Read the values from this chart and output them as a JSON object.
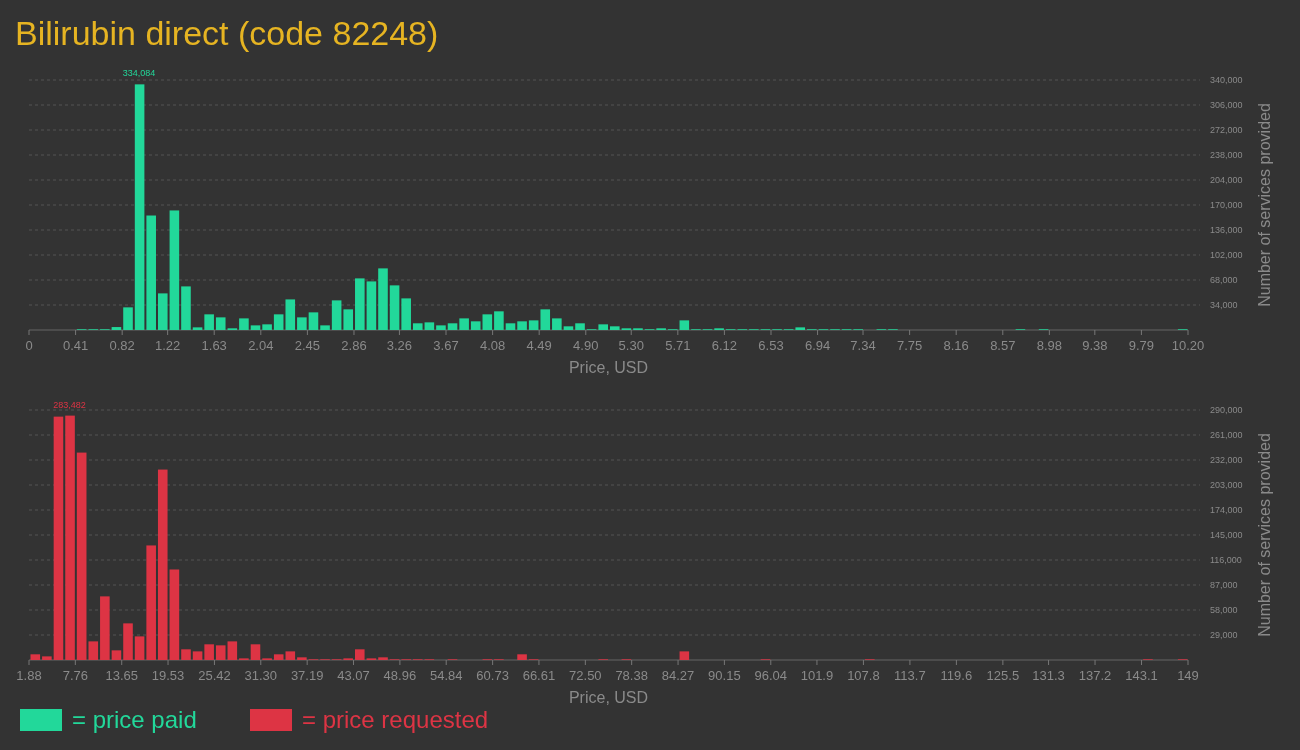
{
  "chart_data": [
    {
      "type": "histogram",
      "title": "Bilirubin direct (code 82248)",
      "xlabel": "Price, USD",
      "ylabel": "Number of services provided",
      "grid": "y",
      "legend": "bottom left",
      "bins": [
        0,
        0.102,
        0.204,
        0.306,
        0.408,
        0.51,
        0.612,
        0.714,
        0.816,
        0.918,
        1.02,
        1.122,
        1.224,
        1.326,
        1.428,
        1.53,
        1.632,
        1.734,
        1.836,
        1.938,
        2.04,
        2.142,
        2.244,
        2.346,
        2.448,
        2.55,
        2.652,
        2.754,
        2.856,
        2.958,
        3.06,
        3.162,
        3.264,
        3.366,
        3.468,
        3.57,
        3.672,
        3.774,
        3.876,
        3.978,
        4.08,
        4.182,
        4.284,
        4.386,
        4.488,
        4.59,
        4.692,
        4.794,
        4.896,
        4.998,
        5.1,
        5.202,
        5.304,
        5.406,
        5.508,
        5.61,
        5.712,
        5.814,
        5.916,
        6.018,
        6.12,
        6.222,
        6.324,
        6.426,
        6.528,
        6.63,
        6.732,
        6.834,
        6.936,
        7.038,
        7.14,
        7.242,
        7.344,
        7.446,
        7.548,
        7.65,
        7.752,
        7.854,
        7.956,
        8.058,
        8.16,
        8.262,
        8.364,
        8.466,
        8.568,
        8.67,
        8.772,
        8.874,
        8.976,
        9.078,
        9.18,
        9.282,
        9.384,
        9.486,
        9.588,
        9.69,
        9.792,
        9.894,
        9.996,
        10.098,
        10.2
      ],
      "series": [
        {
          "name": "= price paid",
          "color": "#22d89a",
          "values": [
            0,
            0,
            0,
            0,
            1000,
            1000,
            1000,
            4000,
            30800,
            334084,
            155700,
            49800,
            162600,
            59300,
            3600,
            21300,
            17200,
            2300,
            15800,
            6300,
            7700,
            21300,
            41600,
            17200,
            24000,
            6300,
            40300,
            28100,
            70200,
            66100,
            83800,
            60700,
            43000,
            9100,
            10400,
            6300,
            9100,
            15800,
            11800,
            21300,
            25400,
            9100,
            11800,
            13100,
            28100,
            15800,
            5000,
            9100,
            1000,
            7700,
            5000,
            2300,
            2300,
            1000,
            2300,
            1000,
            13100,
            1000,
            1000,
            2300,
            1000,
            1000,
            1000,
            1000,
            1000,
            1000,
            3600,
            1000,
            1000,
            1000,
            1000,
            1000,
            0,
            1000,
            1000,
            0,
            0,
            0,
            0,
            0,
            0,
            0,
            0,
            0,
            0,
            1000,
            0,
            1000,
            0,
            0,
            0,
            0,
            0,
            0,
            0,
            0,
            0,
            0,
            0,
            1000
          ],
          "value_labels": [
            null,
            null,
            null,
            null,
            null,
            null,
            null,
            null,
            null,
            "334,084",
            null,
            null,
            null,
            null,
            null,
            null,
            null,
            null,
            null,
            null,
            null,
            null,
            null,
            null,
            null,
            null,
            null,
            null,
            null,
            null,
            null,
            null,
            null,
            null,
            null,
            null,
            null,
            null,
            null,
            null,
            null,
            null,
            null,
            null,
            null,
            null,
            null,
            null,
            null,
            null,
            null,
            null,
            null,
            null,
            null,
            null,
            null,
            null,
            null,
            null,
            null,
            null,
            null,
            null,
            null,
            null,
            null,
            null,
            null,
            null,
            null,
            null,
            null,
            null,
            null,
            null,
            null,
            null,
            null,
            null,
            null,
            null,
            null,
            null,
            null,
            null,
            null,
            null,
            null,
            null,
            null,
            null,
            null,
            null,
            null,
            null,
            null,
            null,
            null,
            null
          ]
        }
      ],
      "xlim": [
        0,
        10.2
      ],
      "xticks": [
        0,
        0.41,
        0.82,
        1.22,
        1.63,
        2.04,
        2.45,
        2.86,
        3.26,
        3.67,
        4.08,
        4.49,
        {
          "value": 4.9,
          "label": "4.90"
        },
        {
          "value": 5.3,
          "label": "5.30"
        },
        5.71,
        6.12,
        6.53,
        6.94,
        7.34,
        7.75,
        8.16,
        8.57,
        8.98,
        9.38,
        9.79,
        {
          "value": 10.2,
          "label": "10.20"
        }
      ],
      "ylim": [
        0,
        340000
      ],
      "yticks": [
        {
          "value": 34000,
          "label": "34,000"
        },
        {
          "value": 68000,
          "label": "68,000"
        },
        {
          "value": 102000,
          "label": "102,000"
        },
        {
          "value": 136000,
          "label": "136,000"
        },
        {
          "value": 170000,
          "label": "170,000"
        },
        {
          "value": 204000,
          "label": "204,000"
        },
        {
          "value": 238000,
          "label": "238,000"
        },
        {
          "value": 272000,
          "label": "272,000"
        },
        {
          "value": 306000,
          "label": "306,000"
        },
        {
          "value": 340000,
          "label": "340,000"
        }
      ]
    },
    {
      "type": "histogram",
      "xlabel": "Price, USD",
      "ylabel": "Number of services provided",
      "grid": "y",
      "legend": "bottom left",
      "bins": [
        1.88,
        3.35,
        4.82,
        6.29,
        7.76,
        9.24,
        10.71,
        12.18,
        13.65,
        15.12,
        16.59,
        18.06,
        19.53,
        21.01,
        22.48,
        23.95,
        25.42,
        26.89,
        28.36,
        29.83,
        31.3,
        32.78,
        34.25,
        35.72,
        37.19,
        38.66,
        40.13,
        41.6,
        43.07,
        44.54,
        46.02,
        47.49,
        48.96,
        50.43,
        51.9,
        53.37,
        54.84,
        56.31,
        57.79,
        59.26,
        60.73,
        62.2,
        63.67,
        65.14,
        66.61,
        68.08,
        69.56,
        71.03,
        72.5,
        73.97,
        75.44,
        76.91,
        78.38,
        79.85,
        81.32,
        82.8,
        84.27,
        85.74,
        87.21,
        88.68,
        90.15,
        91.62,
        93.09,
        94.57,
        96.04,
        97.51,
        98.98,
        100.45,
        101.92,
        103.39,
        104.86,
        106.34,
        107.81,
        109.28,
        110.75,
        112.22,
        113.69,
        115.16,
        116.63,
        118.11,
        119.58,
        121.05,
        122.52,
        123.99,
        125.46,
        126.93,
        128.4,
        129.87,
        131.35,
        132.82,
        134.29,
        135.76,
        137.23,
        138.7,
        140.17,
        141.64,
        143.12,
        144.59,
        146.06,
        147.53,
        149
      ],
      "series": [
        {
          "name": "= price requested",
          "color": "#dd3444",
          "values": [
            6600,
            4200,
            282300,
            283482,
            240600,
            21600,
            73800,
            11200,
            42500,
            27400,
            132900,
            220900,
            105000,
            12400,
            10000,
            18200,
            17000,
            21600,
            1900,
            18200,
            1900,
            6600,
            10000,
            3100,
            800,
            800,
            800,
            1900,
            12400,
            1900,
            3100,
            800,
            800,
            800,
            800,
            0,
            800,
            0,
            0,
            800,
            800,
            0,
            6600,
            800,
            0,
            0,
            0,
            0,
            0,
            800,
            0,
            800,
            0,
            0,
            0,
            0,
            10000,
            0,
            0,
            0,
            0,
            0,
            0,
            800,
            0,
            0,
            0,
            0,
            0,
            0,
            0,
            0,
            800,
            0,
            0,
            0,
            0,
            0,
            0,
            0,
            0,
            0,
            0,
            0,
            0,
            0,
            0,
            0,
            0,
            0,
            0,
            0,
            0,
            0,
            0,
            0,
            800,
            0,
            0,
            800
          ],
          "value_labels": [
            null,
            null,
            null,
            "283,482",
            null,
            null,
            null,
            null,
            null,
            null,
            null,
            null,
            null,
            null,
            null,
            null,
            null,
            null,
            null,
            null,
            null,
            null,
            null,
            null,
            null,
            null,
            null,
            null,
            null,
            null,
            null,
            null,
            null,
            null,
            null,
            null,
            null,
            null,
            null,
            null,
            null,
            null,
            null,
            null,
            null,
            null,
            null,
            null,
            null,
            null,
            null,
            null,
            null,
            null,
            null,
            null,
            null,
            null,
            null,
            null,
            null,
            null,
            null,
            null,
            null,
            null,
            null,
            null,
            null,
            null,
            null,
            null,
            null,
            null,
            null,
            null,
            null,
            null,
            null,
            null,
            null,
            null,
            null,
            null,
            null,
            null,
            null,
            null,
            null,
            null,
            null,
            null,
            null,
            null,
            null,
            null,
            null,
            null,
            null,
            null
          ]
        }
      ],
      "xlim": [
        1.88,
        149
      ],
      "xticks": [
        1.88,
        7.76,
        13.65,
        19.53,
        25.42,
        {
          "value": 31.3,
          "label": "31.30"
        },
        37.19,
        43.07,
        48.96,
        54.84,
        60.73,
        66.61,
        {
          "value": 72.5,
          "label": "72.50"
        },
        78.38,
        84.27,
        90.15,
        96.04,
        101.9,
        107.8,
        113.7,
        119.6,
        125.5,
        131.3,
        137.2,
        143.1,
        149
      ],
      "ylim": [
        0,
        290000
      ],
      "yticks": [
        {
          "value": 29000,
          "label": "29,000"
        },
        {
          "value": 58000,
          "label": "58,000"
        },
        {
          "value": 87000,
          "label": "87,000"
        },
        {
          "value": 116000,
          "label": "116,000"
        },
        {
          "value": 145000,
          "label": "145,000"
        },
        {
          "value": 174000,
          "label": "174,000"
        },
        {
          "value": 203000,
          "label": "203,000"
        },
        {
          "value": 232000,
          "label": "232,000"
        },
        {
          "value": 261000,
          "label": "261,000"
        },
        {
          "value": 290000,
          "label": "290,000"
        }
      ]
    }
  ]
}
